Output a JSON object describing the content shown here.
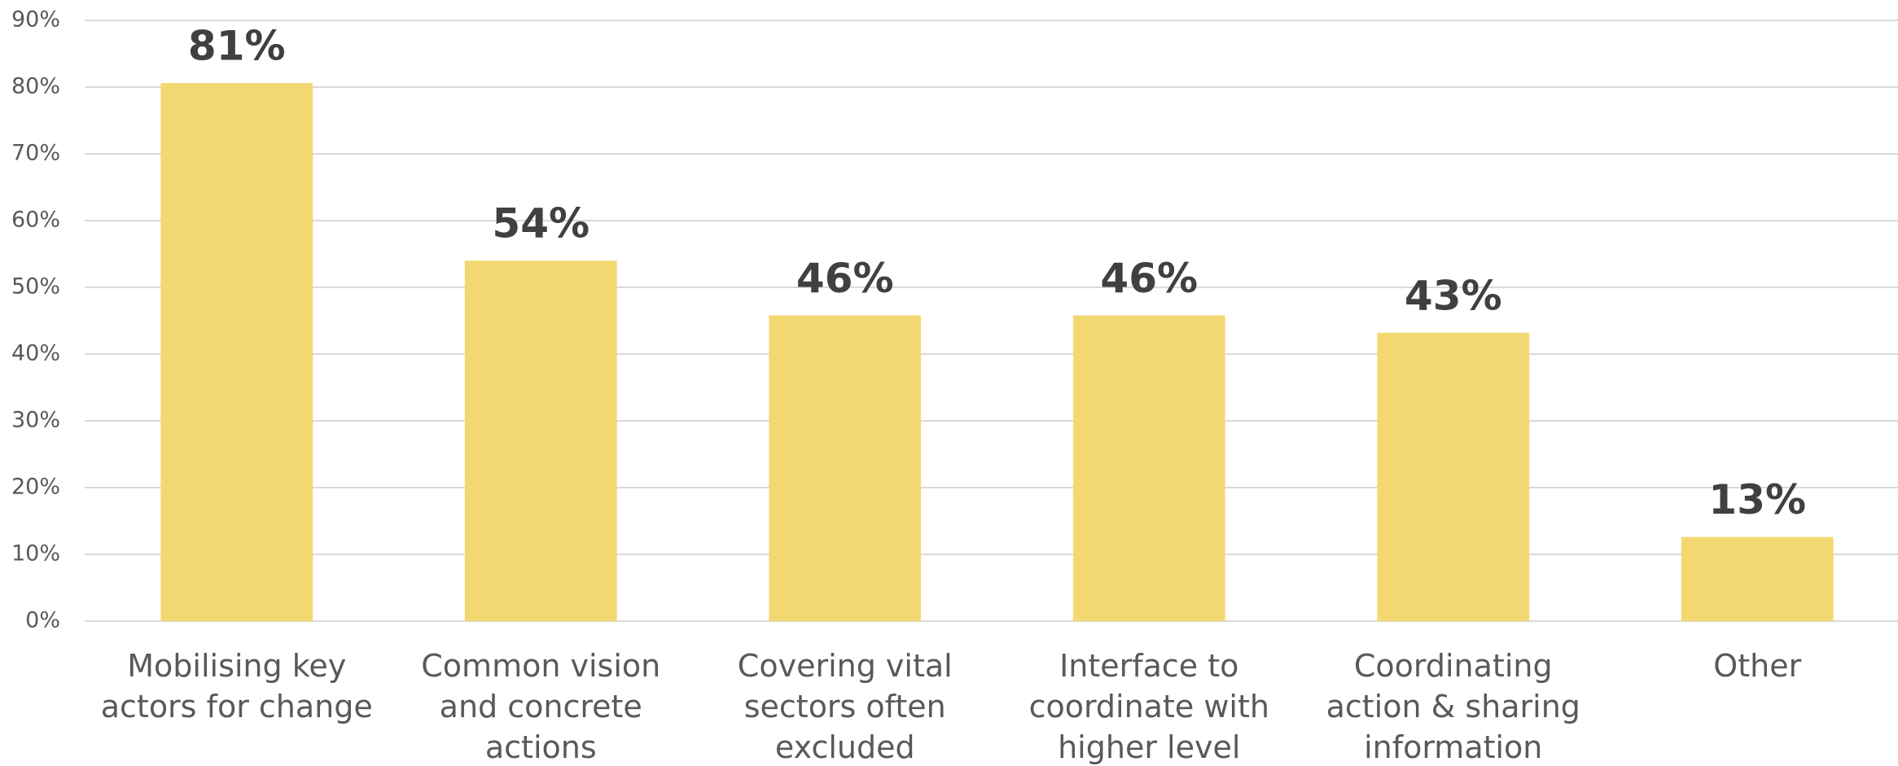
{
  "chart_data": {
    "type": "bar",
    "categories": [
      "Mobilising key actors for change",
      "Common vision and concrete actions",
      "Covering vital sectors often excluded",
      "Interface to coordinate with higher level",
      "Coordinating action & sharing information",
      "Other"
    ],
    "values": [
      80.6,
      54,
      45.8,
      45.8,
      43.2,
      12.6
    ],
    "value_labels": [
      "81%",
      "54%",
      "46%",
      "46%",
      "43%",
      "13%"
    ],
    "color": "#F3D872",
    "ylim": [
      0,
      90
    ],
    "yticks": [
      {
        "value": 0,
        "label": "0%"
      },
      {
        "value": 10,
        "label": "10%"
      },
      {
        "value": 20,
        "label": "20%"
      },
      {
        "value": 30,
        "label": "30%"
      },
      {
        "value": 40,
        "label": "40%"
      },
      {
        "value": 50,
        "label": "50%"
      },
      {
        "value": 60,
        "label": "60%"
      },
      {
        "value": 70,
        "label": "70%"
      },
      {
        "value": 80,
        "label": "80%"
      },
      {
        "value": 90,
        "label": "90%"
      }
    ],
    "grid": true
  }
}
